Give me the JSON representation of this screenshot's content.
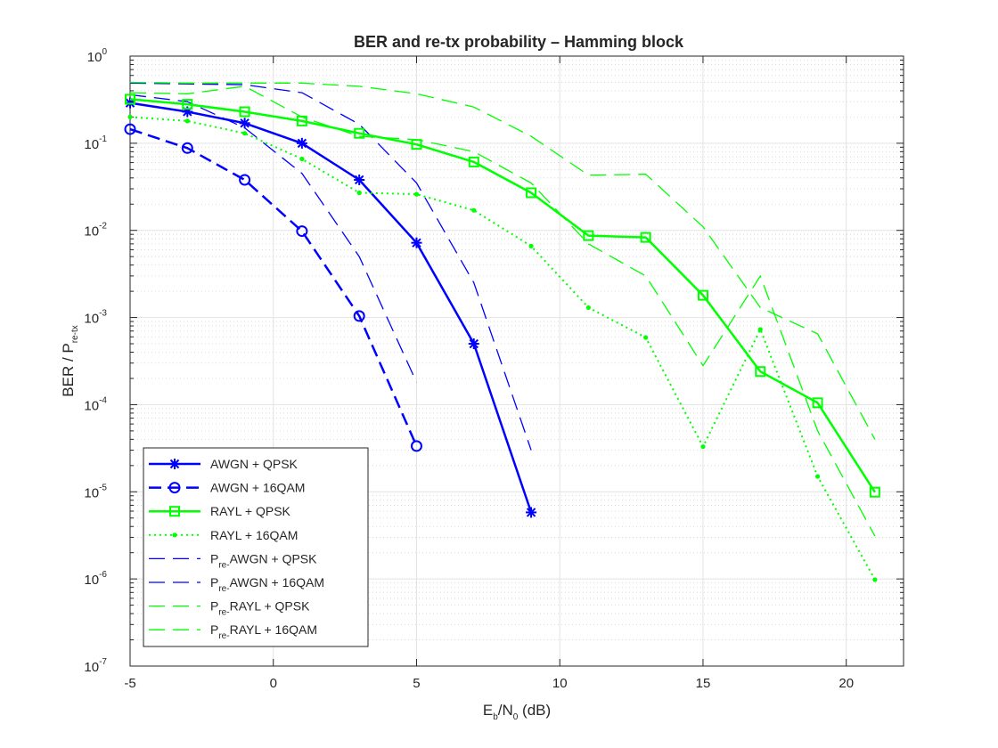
{
  "chart_data": {
    "type": "line",
    "title": "BER and re-tx probability – Hamming block",
    "xlabel": {
      "main": "E",
      "sub": "b",
      "mid": "/N",
      "sub2": "0",
      "tail": "  (dB)"
    },
    "ylabel": {
      "main": "BER / P",
      "sub": "re-tx"
    },
    "xlim": [
      -5,
      22
    ],
    "ylim": [
      1e-07,
      1
    ],
    "yscale": "log",
    "grid": true,
    "legend_position": "bottom-left",
    "xticks": [
      -5,
      0,
      5,
      10,
      15,
      20
    ],
    "xtick_labels": [
      "-5",
      "0",
      "5",
      "10",
      "15",
      "20"
    ],
    "yticks": [
      {
        "value": 1,
        "base": "10",
        "exp": "0"
      },
      {
        "value": 0.1,
        "base": "10",
        "exp": "-1"
      },
      {
        "value": 0.01,
        "base": "10",
        "exp": "-2"
      },
      {
        "value": 0.001,
        "base": "10",
        "exp": "-3"
      },
      {
        "value": 0.0001,
        "base": "10",
        "exp": "-4"
      },
      {
        "value": 1e-05,
        "base": "10",
        "exp": "-5"
      },
      {
        "value": 1e-06,
        "base": "10",
        "exp": "-6"
      },
      {
        "value": 1e-07,
        "base": "10",
        "exp": "-7"
      }
    ],
    "series": [
      {
        "legend_parts": [
          {
            "t": "AWGN  +  QPSK"
          }
        ],
        "color": "#0000ff",
        "style": "solid",
        "marker": "star",
        "x": [
          -5,
          -3,
          -1,
          1,
          3,
          5,
          7,
          9
        ],
        "y": [
          0.29,
          0.23,
          0.17,
          0.1,
          0.038,
          0.0072,
          0.0005,
          5.8e-06
        ]
      },
      {
        "legend_parts": [
          {
            "t": "AWGN  + 16QAM"
          }
        ],
        "color": "#0000ff",
        "style": "dashed-bold",
        "marker": "circle",
        "x": [
          -5,
          -3,
          -1,
          1,
          3,
          5
        ],
        "y": [
          0.145,
          0.088,
          0.038,
          0.0098,
          0.00104,
          3.35e-05
        ]
      },
      {
        "legend_parts": [
          {
            "t": "RAYL  +  QPSK"
          }
        ],
        "color": "#00ff00",
        "style": "solid",
        "marker": "square",
        "x": [
          -5,
          -3,
          -1,
          1,
          3,
          5,
          7,
          9,
          11,
          13,
          15,
          17,
          19,
          21
        ],
        "y": [
          0.32,
          0.28,
          0.23,
          0.18,
          0.13,
          0.097,
          0.061,
          0.027,
          0.0087,
          0.0083,
          0.0018,
          0.00024,
          0.000105,
          9.9e-06
        ]
      },
      {
        "legend_parts": [
          {
            "t": "RAYL  + 16QAM"
          }
        ],
        "color": "#00ff00",
        "style": "dotted",
        "marker": "dot",
        "x": [
          -5,
          -3,
          -1,
          1,
          3,
          5,
          7,
          9,
          11,
          13,
          15,
          17,
          19,
          21
        ],
        "y": [
          0.2,
          0.18,
          0.13,
          0.066,
          0.027,
          0.026,
          0.017,
          0.0066,
          0.0013,
          0.00059,
          3.3e-05,
          0.00073,
          1.5e-05,
          9.8e-07
        ]
      },
      {
        "legend_parts": [
          {
            "t": "P"
          },
          {
            "t": "re-",
            "sub": true
          },
          {
            "t": "AWGN  +  QPSK"
          }
        ],
        "color": "#0000ff",
        "style": "dashed",
        "marker": "none",
        "x": [
          -5,
          -3,
          -1,
          1,
          3,
          5,
          7,
          9
        ],
        "y": [
          0.49,
          0.48,
          0.47,
          0.38,
          0.165,
          0.035,
          0.0025,
          3e-05
        ]
      },
      {
        "legend_parts": [
          {
            "t": "P"
          },
          {
            "t": "re-",
            "sub": true
          },
          {
            "t": "AWGN  + 16QAM"
          }
        ],
        "color": "#0000ff",
        "style": "dashed",
        "marker": "none",
        "x": [
          -5,
          -3,
          -1,
          1,
          3,
          5
        ],
        "y": [
          0.36,
          0.3,
          0.15,
          0.045,
          0.005,
          0.00018
        ]
      },
      {
        "legend_parts": [
          {
            "t": "P"
          },
          {
            "t": "re-",
            "sub": true
          },
          {
            "t": "RAYL  +  QPSK"
          }
        ],
        "color": "#00ff00",
        "style": "dashed",
        "marker": "none",
        "x": [
          -5,
          -3,
          -1,
          1,
          3,
          5,
          7,
          9,
          11,
          13,
          15,
          17,
          19,
          21
        ],
        "y": [
          0.5,
          0.49,
          0.49,
          0.49,
          0.45,
          0.37,
          0.26,
          0.12,
          0.043,
          0.044,
          0.011,
          0.0013,
          0.00065,
          4e-05
        ]
      },
      {
        "legend_parts": [
          {
            "t": "P"
          },
          {
            "t": "re-",
            "sub": true
          },
          {
            "t": "RAYL  + 16QAM"
          }
        ],
        "color": "#00ff00",
        "style": "dashed",
        "marker": "none",
        "x": [
          -5,
          -3,
          -1,
          1,
          3,
          5,
          7,
          9,
          11,
          13,
          15,
          17,
          19,
          21
        ],
        "y": [
          0.38,
          0.37,
          0.45,
          0.2,
          0.12,
          0.11,
          0.08,
          0.035,
          0.007,
          0.003,
          0.00028,
          0.003,
          5e-05,
          3.1e-06
        ]
      }
    ]
  }
}
